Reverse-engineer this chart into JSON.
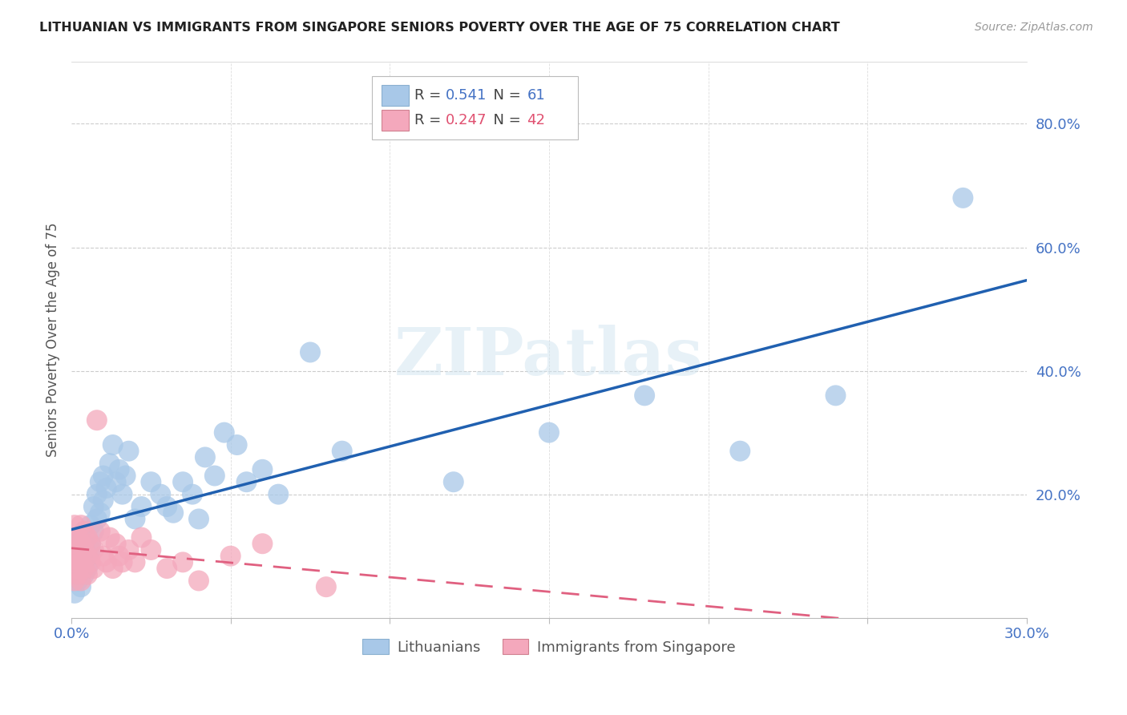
{
  "title": "LITHUANIAN VS IMMIGRANTS FROM SINGAPORE SENIORS POVERTY OVER THE AGE OF 75 CORRELATION CHART",
  "source": "Source: ZipAtlas.com",
  "ylabel": "Seniors Poverty Over the Age of 75",
  "R_blue": 0.541,
  "N_blue": 61,
  "R_pink": 0.247,
  "N_pink": 42,
  "blue_color": "#a8c8e8",
  "pink_color": "#f4a8bc",
  "line_blue_color": "#2060b0",
  "line_pink_color": "#e06080",
  "watermark": "ZIPatlas",
  "xlim": [
    0.0,
    0.3
  ],
  "ylim": [
    0.0,
    0.9
  ],
  "blue_x": [
    0.001,
    0.001,
    0.001,
    0.002,
    0.002,
    0.002,
    0.002,
    0.003,
    0.003,
    0.003,
    0.003,
    0.004,
    0.004,
    0.004,
    0.004,
    0.005,
    0.005,
    0.005,
    0.006,
    0.006,
    0.006,
    0.007,
    0.007,
    0.008,
    0.008,
    0.009,
    0.009,
    0.01,
    0.01,
    0.011,
    0.012,
    0.013,
    0.014,
    0.015,
    0.016,
    0.017,
    0.018,
    0.02,
    0.022,
    0.025,
    0.028,
    0.03,
    0.032,
    0.035,
    0.038,
    0.04,
    0.042,
    0.045,
    0.048,
    0.052,
    0.055,
    0.06,
    0.065,
    0.075,
    0.085,
    0.12,
    0.15,
    0.18,
    0.21,
    0.24,
    0.28
  ],
  "blue_y": [
    0.04,
    0.07,
    0.1,
    0.06,
    0.09,
    0.12,
    0.08,
    0.05,
    0.1,
    0.13,
    0.08,
    0.07,
    0.11,
    0.14,
    0.09,
    0.1,
    0.13,
    0.08,
    0.12,
    0.15,
    0.11,
    0.14,
    0.18,
    0.16,
    0.2,
    0.17,
    0.22,
    0.19,
    0.23,
    0.21,
    0.25,
    0.28,
    0.22,
    0.24,
    0.2,
    0.23,
    0.27,
    0.16,
    0.18,
    0.22,
    0.2,
    0.18,
    0.17,
    0.22,
    0.2,
    0.16,
    0.26,
    0.23,
    0.3,
    0.28,
    0.22,
    0.24,
    0.2,
    0.43,
    0.27,
    0.22,
    0.3,
    0.36,
    0.27,
    0.36,
    0.68
  ],
  "pink_x": [
    0.001,
    0.001,
    0.001,
    0.001,
    0.002,
    0.002,
    0.002,
    0.002,
    0.002,
    0.003,
    0.003,
    0.003,
    0.003,
    0.004,
    0.004,
    0.004,
    0.005,
    0.005,
    0.005,
    0.006,
    0.006,
    0.007,
    0.007,
    0.008,
    0.009,
    0.01,
    0.011,
    0.012,
    0.013,
    0.014,
    0.015,
    0.016,
    0.018,
    0.02,
    0.022,
    0.025,
    0.03,
    0.035,
    0.04,
    0.05,
    0.06,
    0.08
  ],
  "pink_y": [
    0.06,
    0.09,
    0.12,
    0.15,
    0.07,
    0.1,
    0.13,
    0.08,
    0.11,
    0.06,
    0.09,
    0.12,
    0.15,
    0.08,
    0.11,
    0.14,
    0.07,
    0.1,
    0.13,
    0.09,
    0.12,
    0.08,
    0.11,
    0.32,
    0.14,
    0.1,
    0.09,
    0.13,
    0.08,
    0.12,
    0.1,
    0.09,
    0.11,
    0.09,
    0.13,
    0.11,
    0.08,
    0.09,
    0.06,
    0.1,
    0.12,
    0.05
  ]
}
